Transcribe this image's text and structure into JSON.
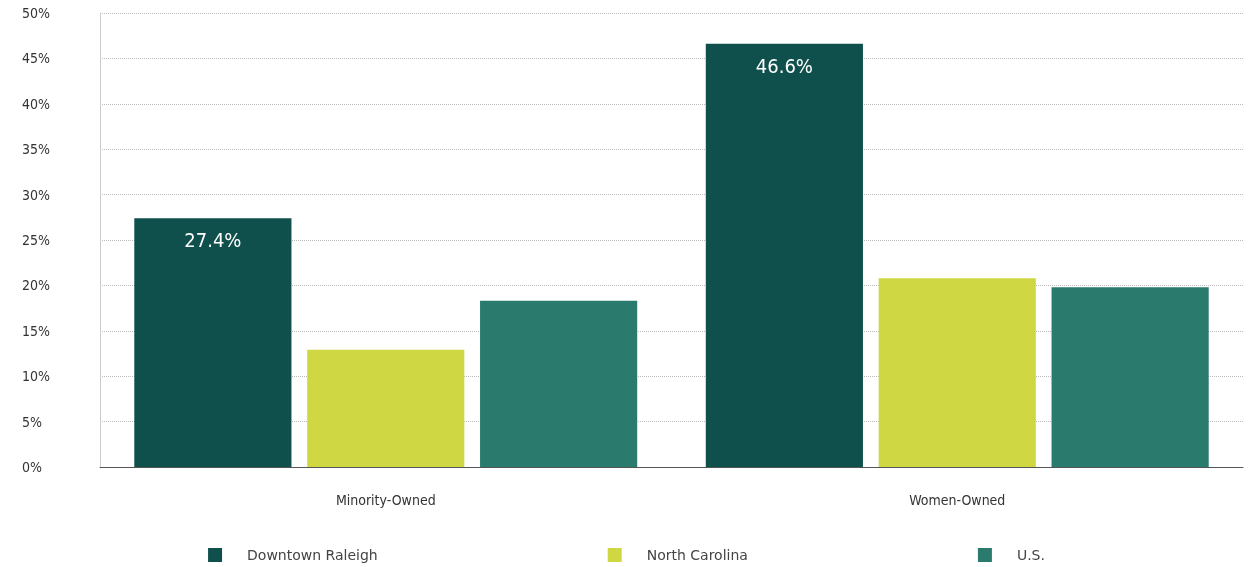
{
  "chart_data": {
    "type": "bar",
    "categories": [
      "Minority-Owned",
      "Women-Owned"
    ],
    "series": [
      {
        "name": "Downtown Raleigh",
        "color": "#0f4f4c",
        "values": [
          27.4,
          46.6
        ],
        "value_labels": [
          "27.4%",
          "46.6%"
        ]
      },
      {
        "name": "North Carolina",
        "color": "#cfd843",
        "values": [
          12.9,
          20.8
        ]
      },
      {
        "name": "U.S.",
        "color": "#2a7a6e",
        "values": [
          18.3,
          19.8
        ]
      }
    ],
    "ylim": [
      0,
      50
    ],
    "yticks": [
      {
        "value": 0,
        "label": "0%"
      },
      {
        "value": 5,
        "label": "5%"
      },
      {
        "value": 10,
        "label": "10%"
      },
      {
        "value": 15,
        "label": "15%"
      },
      {
        "value": 20,
        "label": "20%"
      },
      {
        "value": 25,
        "label": "25%"
      },
      {
        "value": 30,
        "label": "30%"
      },
      {
        "value": 35,
        "label": "35%"
      },
      {
        "value": 40,
        "label": "40%"
      },
      {
        "value": 45,
        "label": "45%"
      },
      {
        "value": 50,
        "label": "50%"
      }
    ],
    "grid": "y",
    "legend": "bottom"
  }
}
